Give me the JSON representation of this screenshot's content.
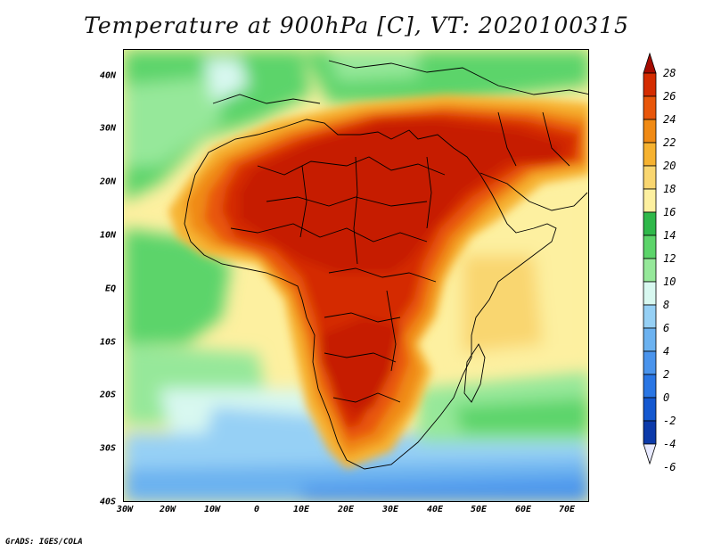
{
  "title": "Temperature at 900hPa [C], VT: 2020100315",
  "credit": "GrADS: IGES/COLA",
  "lat_labels": [
    "40N",
    "30N",
    "20N",
    "10N",
    "EQ",
    "10S",
    "20S",
    "30S",
    "40S"
  ],
  "lon_labels": [
    "30W",
    "20W",
    "10W",
    "0",
    "10E",
    "20E",
    "30E",
    "40E",
    "50E",
    "60E",
    "70E"
  ],
  "colorbar": {
    "labels": [
      "28",
      "26",
      "24",
      "22",
      "20",
      "18",
      "16",
      "14",
      "12",
      "10",
      "8",
      "6",
      "4",
      "2",
      "0",
      "-2",
      "-4",
      "-6"
    ],
    "colors": [
      "#a50b00",
      "#d42c00",
      "#e8560a",
      "#f08a14",
      "#f6b230",
      "#f9d670",
      "#fdf0a0",
      "#2fb84a",
      "#5cd46a",
      "#96e89a",
      "#d8f8f0",
      "#96d0f5",
      "#6cb2f0",
      "#4a94ec",
      "#2a76e4",
      "#1458d0",
      "#0c3aaa",
      "#0a1e78"
    ]
  },
  "icons": [
    "colorbar-up-arrow-icon",
    "colorbar-down-arrow-icon"
  ]
}
